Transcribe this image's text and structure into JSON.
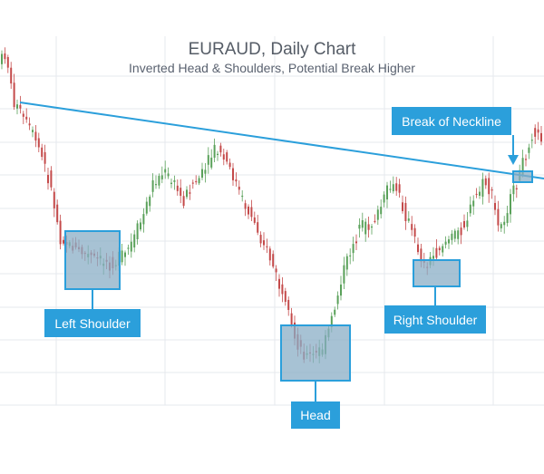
{
  "chart_data": {
    "type": "candlestick",
    "title": "EURAUD, Daily Chart",
    "subtitle": "Inverted Head & Shoulders, Potential Break Higher",
    "grid": true,
    "legend": "none",
    "trendline": {
      "name": "Neckline",
      "direction": "descending"
    },
    "annotations": [
      {
        "name": "left-shoulder",
        "label": "Left Shoulder"
      },
      {
        "name": "head",
        "label": "Head"
      },
      {
        "name": "right-shoulder",
        "label": "Right Shoulder"
      },
      {
        "name": "break-of-neckline",
        "label": "Break of Neckline"
      }
    ],
    "colors": {
      "up": "#5aa15a",
      "down": "#c44a4a",
      "annotation": "#2b9fdb",
      "zone_fill": "#8aaec6",
      "grid": "#e6e9ee"
    }
  }
}
